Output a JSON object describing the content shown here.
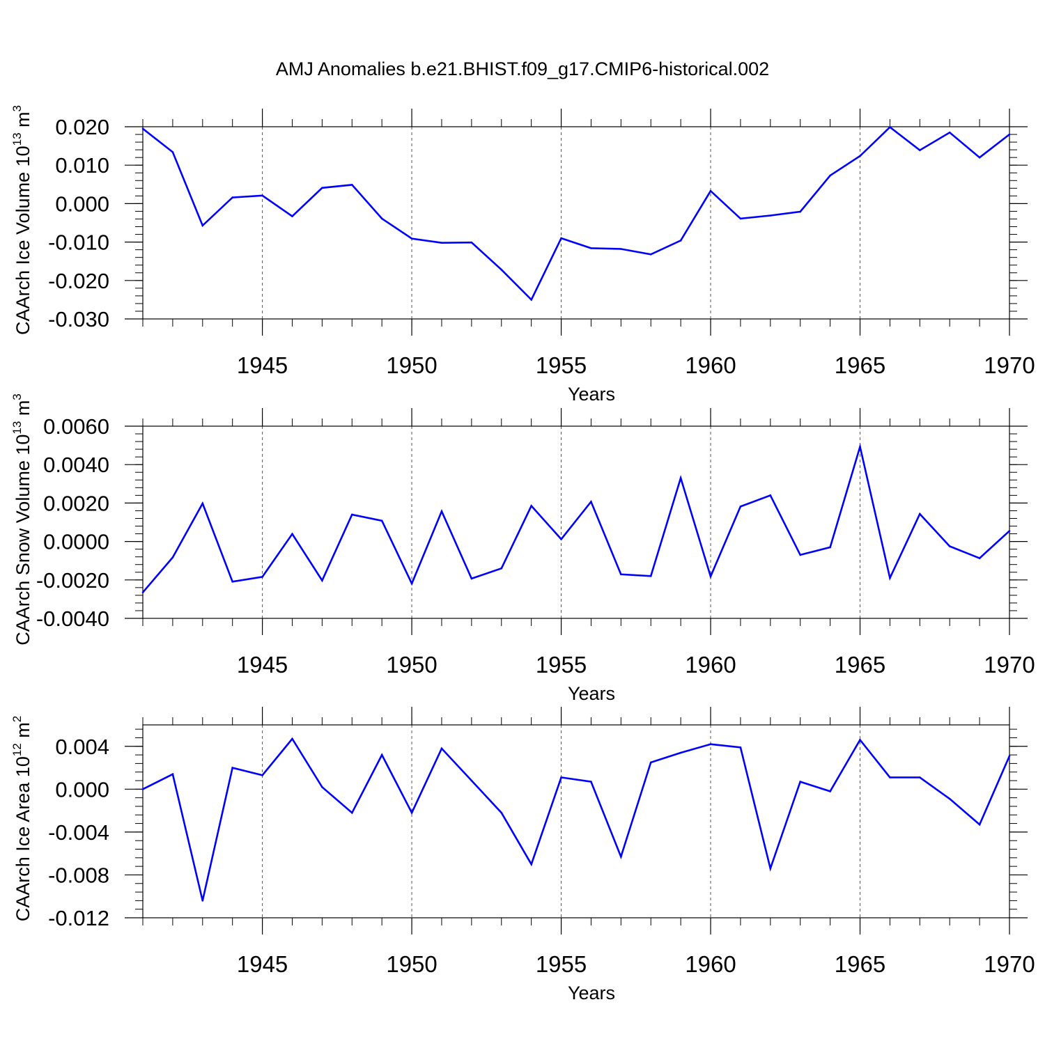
{
  "title": "AMJ Anomalies b.e21.BHIST.f09_g17.CMIP6-historical.002",
  "line_color": "#0000ff",
  "chart_data": [
    {
      "type": "line",
      "ylabel_main": "CAArch Ice Volume 10",
      "ylabel_exp": "13",
      "ylabel_unit": " m",
      "ylabel_unit_exp": "3",
      "xlabel": "Years",
      "xlim": [
        1941,
        1970
      ],
      "ylim": [
        -0.03,
        0.02
      ],
      "yticks": [
        -0.03,
        -0.02,
        -0.01,
        0.0,
        0.01,
        0.02
      ],
      "ytick_labels": [
        "-0.030",
        "-0.020",
        "-0.010",
        "0.000",
        "0.010",
        "0.020"
      ],
      "xticks": [
        1945,
        1950,
        1955,
        1960,
        1965,
        1970
      ],
      "xtick_labels": [
        "1945",
        "1950",
        "1955",
        "1960",
        "1965",
        "1970"
      ],
      "series": [
        {
          "name": "Ice Volume",
          "x": [
            1941,
            1942,
            1943,
            1944,
            1945,
            1946,
            1947,
            1948,
            1949,
            1950,
            1951,
            1952,
            1953,
            1954,
            1955,
            1956,
            1957,
            1958,
            1959,
            1960,
            1961,
            1962,
            1963,
            1964,
            1965,
            1966,
            1967,
            1968,
            1969,
            1970
          ],
          "values": [
            0.0195,
            0.0134,
            -0.0057,
            0.0016,
            0.0021,
            -0.0033,
            0.0041,
            0.0049,
            -0.0039,
            -0.0091,
            -0.0102,
            -0.0101,
            -0.0172,
            -0.025,
            -0.009,
            -0.0116,
            -0.0118,
            -0.0132,
            -0.0096,
            0.0033,
            -0.0039,
            -0.0031,
            -0.0021,
            0.0073,
            0.0124,
            0.0199,
            0.0139,
            0.0185,
            0.012,
            0.018
          ]
        }
      ]
    },
    {
      "type": "line",
      "ylabel_main": "CAArch Snow Volume 10",
      "ylabel_exp": "13",
      "ylabel_unit": " m",
      "ylabel_unit_exp": "3",
      "xlabel": "Years",
      "xlim": [
        1941,
        1970
      ],
      "ylim": [
        -0.004,
        0.006
      ],
      "yticks": [
        -0.004,
        -0.002,
        0.0,
        0.002,
        0.004,
        0.006
      ],
      "ytick_labels": [
        "-0.0040",
        "-0.0020",
        "0.0000",
        "0.0020",
        "0.0040",
        "0.0060"
      ],
      "xticks": [
        1945,
        1950,
        1955,
        1960,
        1965,
        1970
      ],
      "xtick_labels": [
        "1945",
        "1950",
        "1955",
        "1960",
        "1965",
        "1970"
      ],
      "series": [
        {
          "name": "Snow Volume",
          "x": [
            1941,
            1942,
            1943,
            1944,
            1945,
            1946,
            1947,
            1948,
            1949,
            1950,
            1951,
            1952,
            1953,
            1954,
            1955,
            1956,
            1957,
            1958,
            1959,
            1960,
            1961,
            1962,
            1963,
            1964,
            1965,
            1966,
            1967,
            1968,
            1969,
            1970
          ],
          "values": [
            -0.00265,
            -0.00083,
            0.00198,
            -0.00209,
            -0.00184,
            0.00039,
            -0.00203,
            0.0014,
            0.00108,
            -0.00219,
            0.00157,
            -0.00193,
            -0.0014,
            0.00185,
            0.00012,
            0.00207,
            -0.00171,
            -0.0018,
            0.0033,
            -0.00182,
            0.00182,
            0.0024,
            -0.0007,
            -0.0003,
            0.00493,
            -0.0019,
            0.00143,
            -0.00025,
            -0.00087,
            0.00055
          ]
        }
      ]
    },
    {
      "type": "line",
      "ylabel_main": "CAArch Ice Area 10",
      "ylabel_exp": "12",
      "ylabel_unit": " m",
      "ylabel_unit_exp": "2",
      "xlabel": "Years",
      "xlim": [
        1941,
        1970
      ],
      "ylim": [
        -0.012,
        0.006
      ],
      "yticks": [
        -0.012,
        -0.008,
        -0.004,
        0.0,
        0.004
      ],
      "ytick_labels": [
        "-0.012",
        "-0.008",
        "-0.004",
        "0.000",
        "0.004"
      ],
      "xticks": [
        1945,
        1950,
        1955,
        1960,
        1965,
        1970
      ],
      "xtick_labels": [
        "1945",
        "1950",
        "1955",
        "1960",
        "1965",
        "1970"
      ],
      "series": [
        {
          "name": "Ice Area",
          "x": [
            1941,
            1942,
            1943,
            1944,
            1945,
            1946,
            1947,
            1948,
            1949,
            1950,
            1951,
            1952,
            1953,
            1954,
            1955,
            1956,
            1957,
            1958,
            1959,
            1960,
            1961,
            1962,
            1963,
            1964,
            1965,
            1966,
            1967,
            1968,
            1969,
            1970
          ],
          "values": [
            0.0,
            0.0014,
            -0.0104,
            0.002,
            0.0013,
            0.0047,
            0.0002,
            -0.0022,
            0.0032,
            -0.0022,
            0.0038,
            0.0008,
            -0.0022,
            -0.007,
            0.0011,
            0.0007,
            -0.0063,
            0.0025,
            0.0034,
            0.0042,
            0.0039,
            -0.0074,
            0.0007,
            -0.0002,
            0.0046,
            0.0011,
            0.0011,
            -0.0009,
            -0.0033,
            0.0031
          ]
        }
      ]
    }
  ]
}
